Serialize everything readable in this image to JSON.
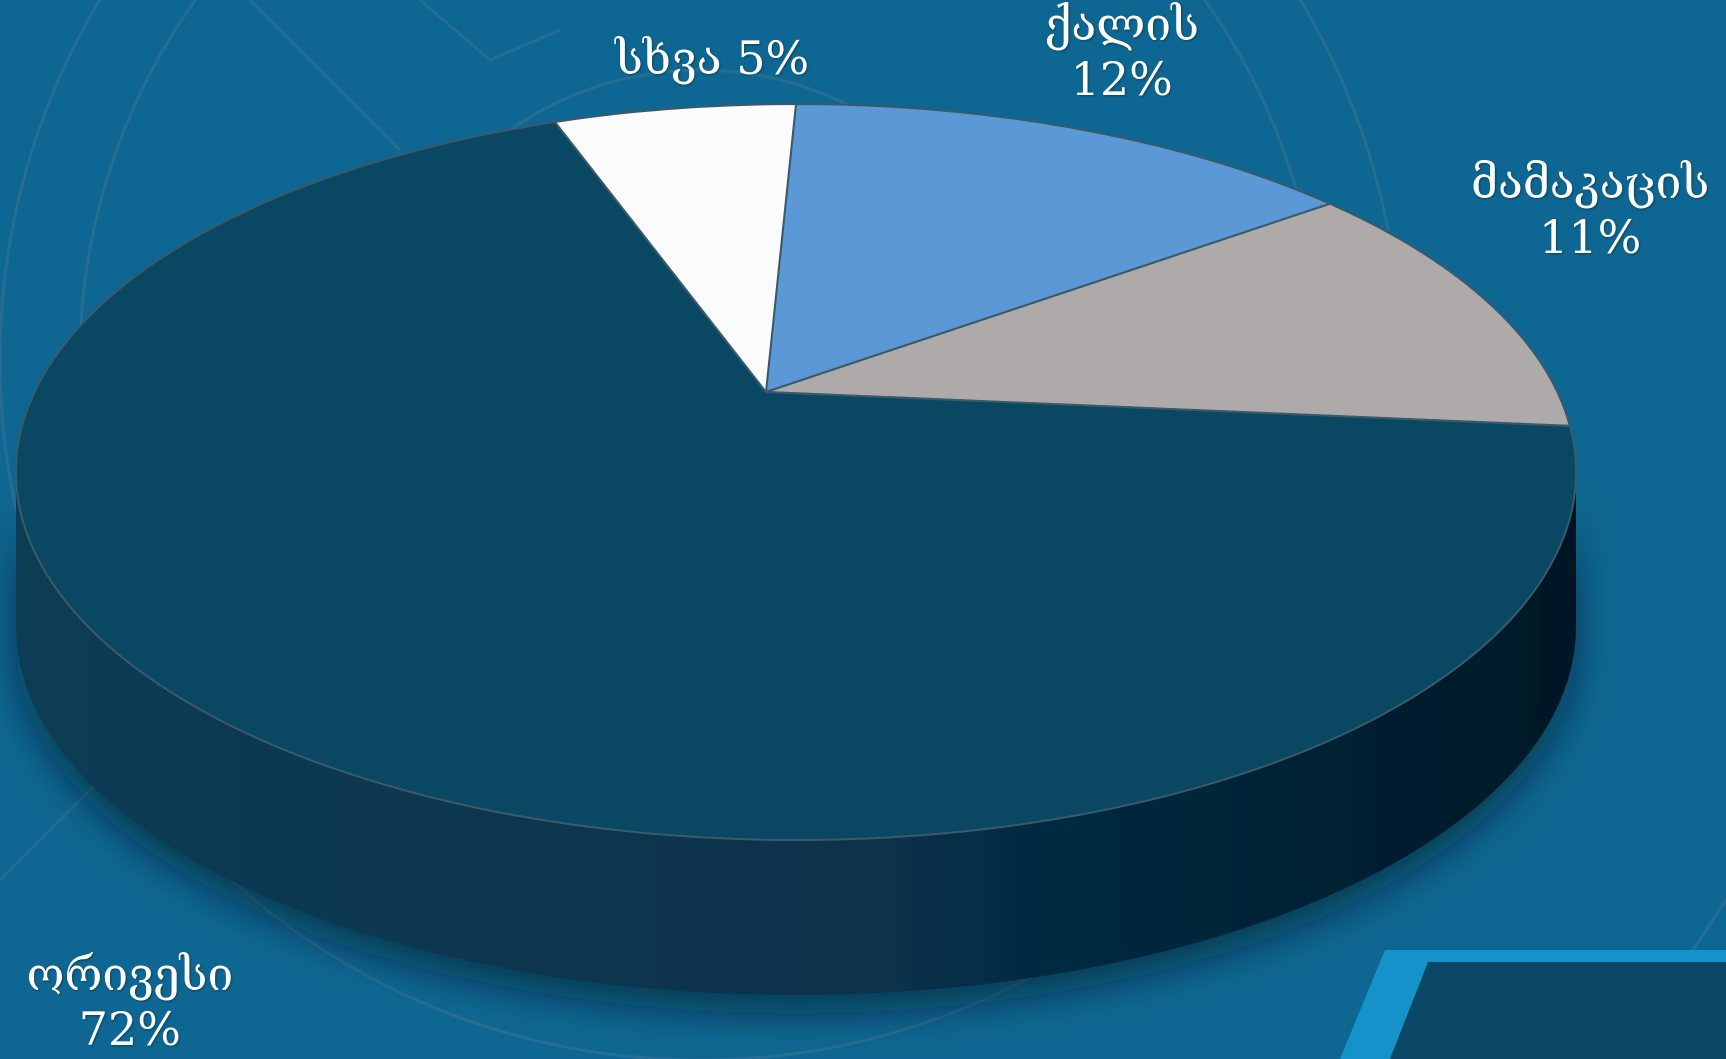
{
  "chart_data": {
    "type": "pie",
    "three_d": true,
    "categories": [
      "ქალის",
      "მამაკაცის",
      "ორივესი",
      "სხვა"
    ],
    "values": [
      12,
      11,
      72,
      5
    ],
    "value_labels": [
      "12%",
      "11%",
      "72%",
      "5%"
    ],
    "colors": [
      "#5b98d6",
      "#adaaa9",
      "#0a4763",
      "#fbfbfb"
    ],
    "title": "",
    "legend": "none",
    "data_labels": "outside"
  },
  "colors": {
    "background": "#0e6792",
    "decor_line": "#2a6f93",
    "corner_frame": "#1592c9",
    "corner_fill": "#0b4866",
    "label_text": "#ffffff"
  }
}
